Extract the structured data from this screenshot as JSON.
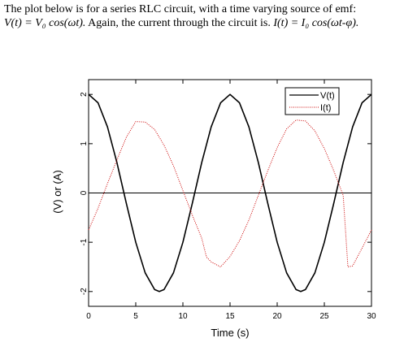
{
  "problem": {
    "line1": "The plot below is for a series RLC circuit, with a time varying source of emf:",
    "voltage_eq": "V(t) = V₀ cos(ωt).",
    "line2_middle": "  Again, the current through the circuit is. ",
    "current_eq": "I(t) = I₀ cos(ωt-φ)."
  },
  "chart_data": {
    "type": "line",
    "xlabel": "Time (s)",
    "ylabel": "(V) or (A)",
    "xlim": [
      0,
      30
    ],
    "ylim": [
      -2.3,
      2.3
    ],
    "xticks": [
      0,
      5,
      10,
      15,
      20,
      25,
      30
    ],
    "yticks": [
      -2,
      -1,
      0,
      1,
      2
    ],
    "grid": true,
    "grid_color": "#00cc00",
    "legend_position": "top-right",
    "series": [
      {
        "name": "V(t)",
        "color": "#000000",
        "style": "solid",
        "x": [
          0,
          1,
          2,
          3,
          4,
          5,
          6,
          7,
          7.5,
          8,
          9,
          10,
          11,
          12,
          13,
          14,
          15,
          16,
          17,
          18,
          19,
          20,
          21,
          22,
          22.5,
          23,
          24,
          25,
          26,
          27,
          28,
          29,
          30
        ],
        "y": [
          2,
          1.83,
          1.34,
          0.62,
          -0.21,
          -1,
          -1.62,
          -1.96,
          -2,
          -1.96,
          -1.62,
          -1,
          -0.21,
          0.62,
          1.34,
          1.83,
          2,
          1.83,
          1.34,
          0.62,
          -0.21,
          -1,
          -1.62,
          -1.96,
          -2,
          -1.96,
          -1.62,
          -1,
          -0.21,
          0.62,
          1.34,
          1.83,
          2
        ]
      },
      {
        "name": "I(t)",
        "color": "#cc0000",
        "style": "dotted",
        "x": [
          0,
          1,
          2,
          3,
          4,
          5,
          6,
          7,
          8,
          9,
          10,
          11,
          12,
          12.5,
          13,
          14,
          15,
          16,
          17,
          18,
          19,
          20,
          21,
          22,
          23,
          24,
          25,
          26,
          27,
          27.5,
          28,
          29,
          30
        ],
        "y": [
          -0.75,
          -0.31,
          0.19,
          0.67,
          1.13,
          1.45,
          1.44,
          1.29,
          0.97,
          0.55,
          0.05,
          -0.45,
          -0.92,
          -1.3,
          -1.4,
          -1.5,
          -1.29,
          -0.97,
          -0.55,
          -0.05,
          0.45,
          0.92,
          1.3,
          1.48,
          1.46,
          1.26,
          0.9,
          0.45,
          -0.05,
          -1.5,
          -1.48,
          -1.12,
          -0.75
        ]
      }
    ]
  }
}
